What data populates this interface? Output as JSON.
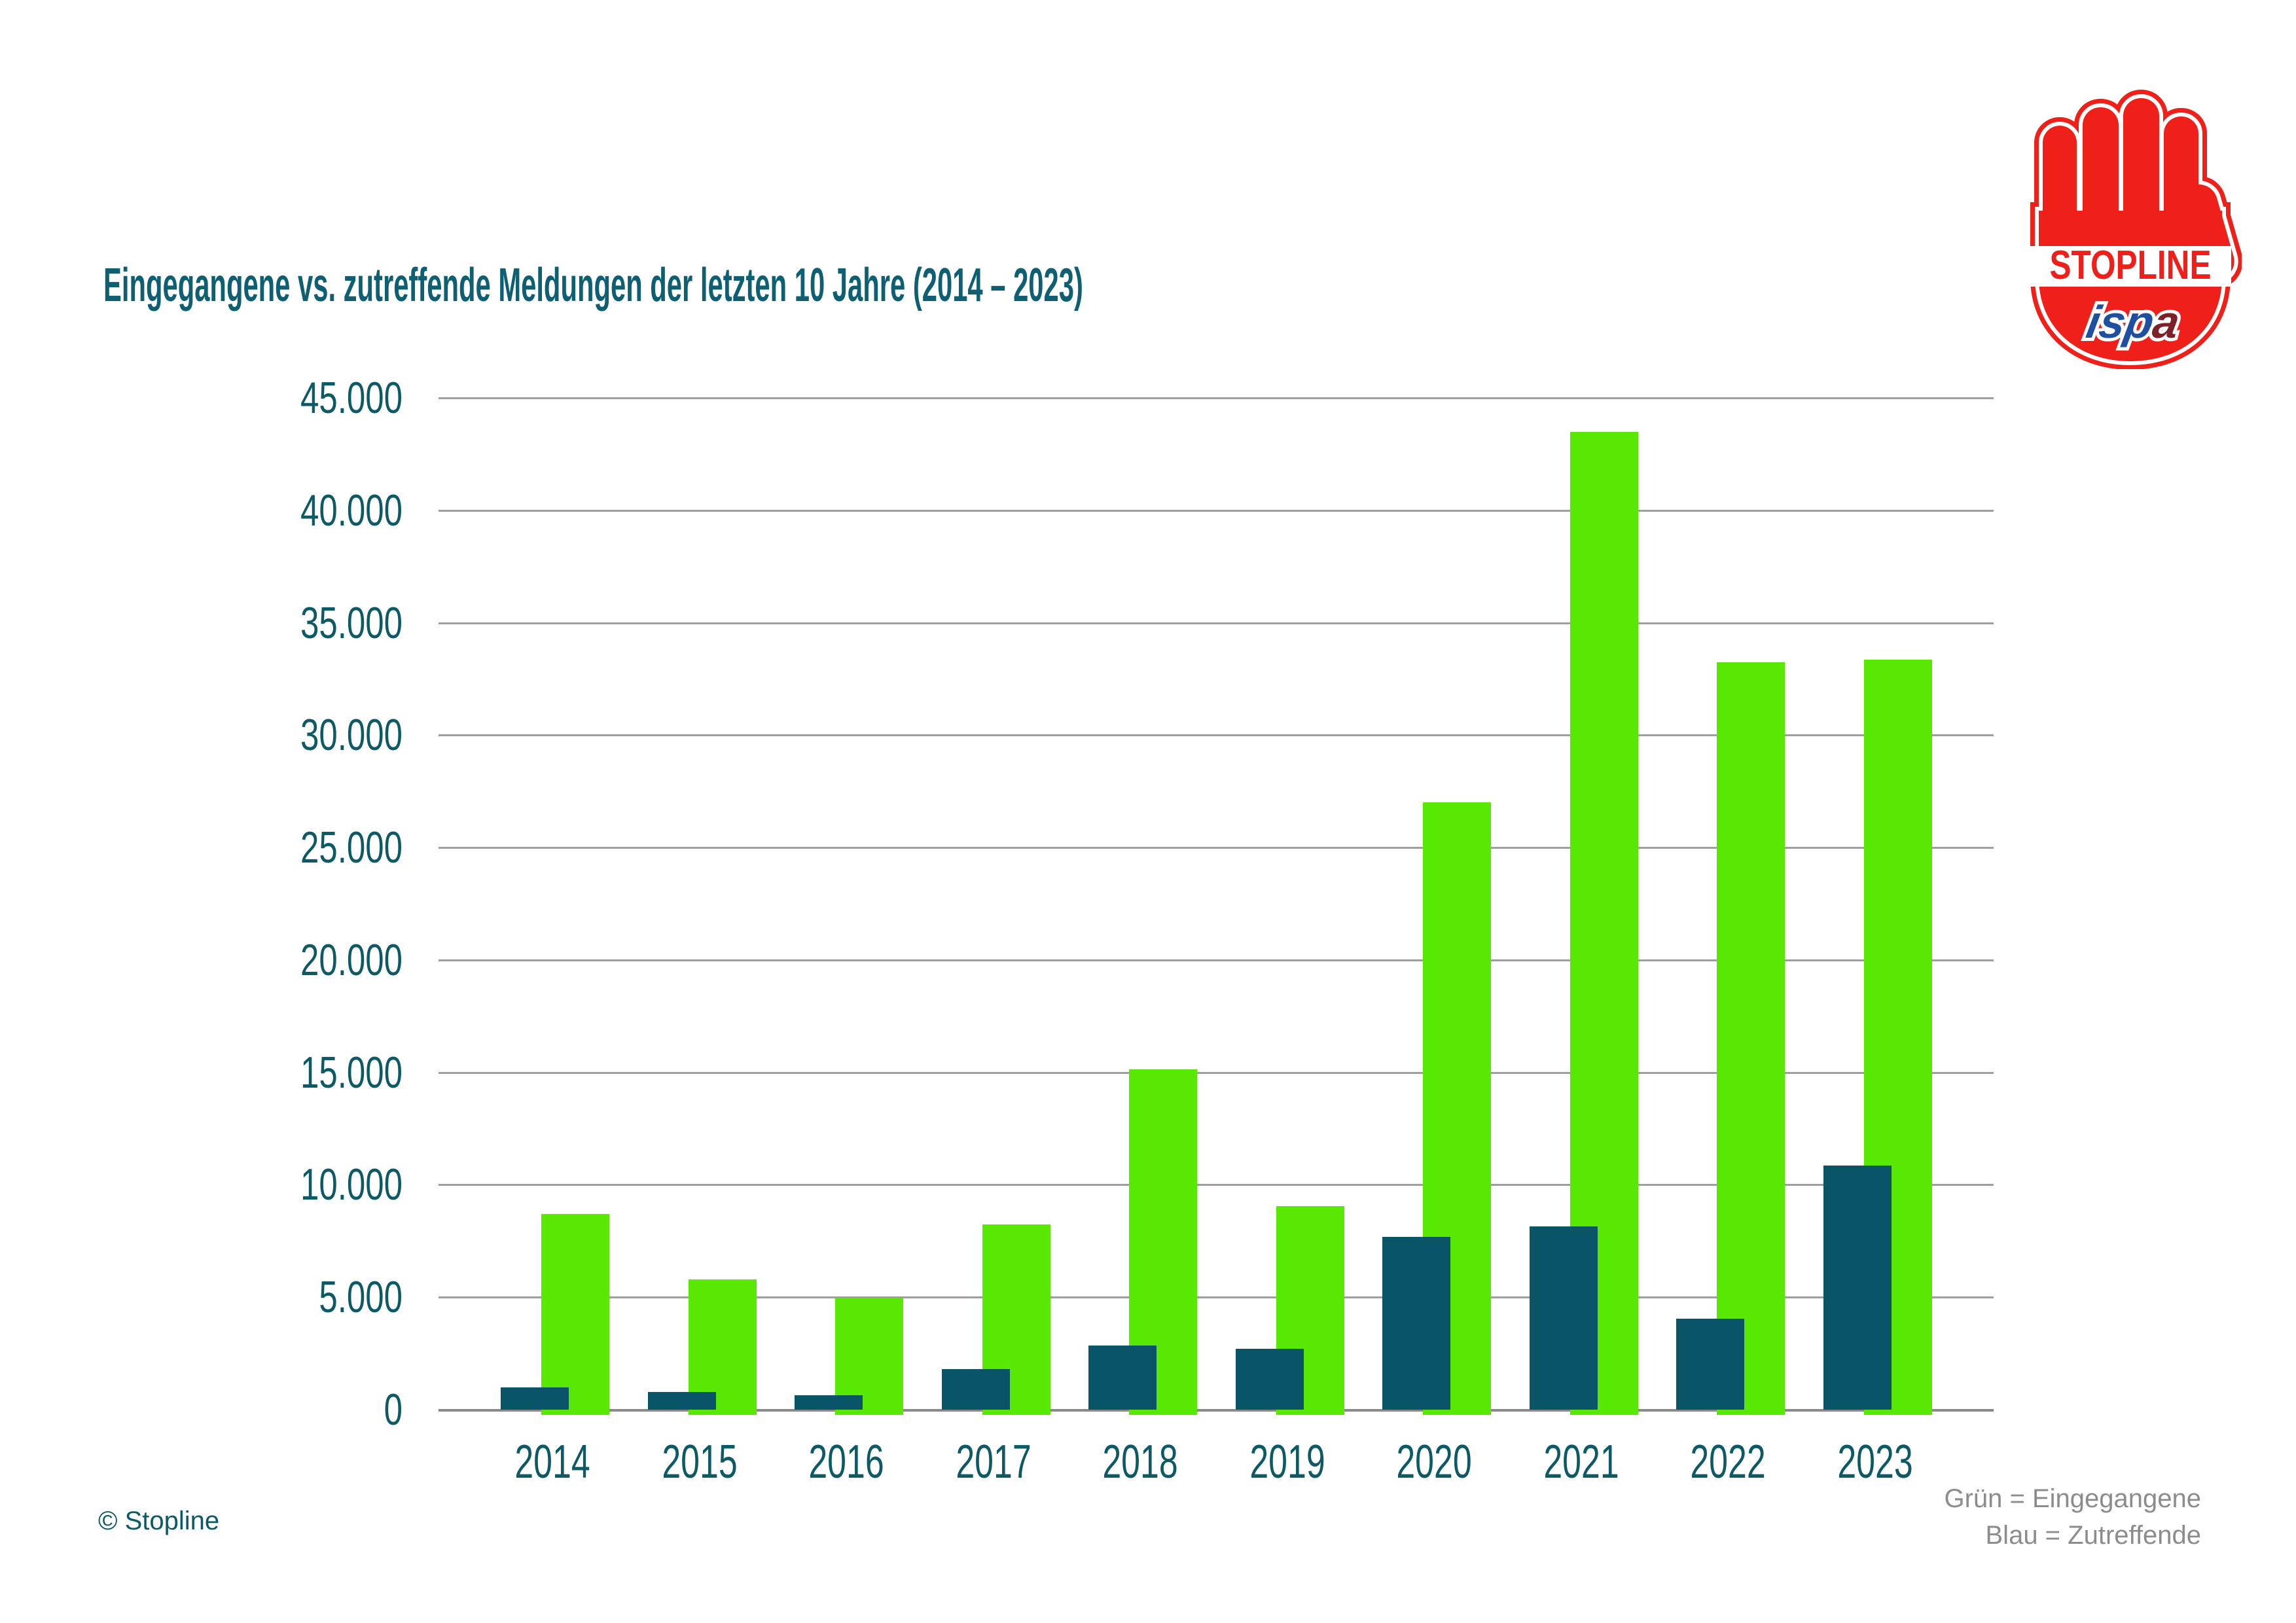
{
  "title": "Eingegangene vs. zutreffende Meldungen der letzten 10 Jahre (2014 – 2023)",
  "logo": {
    "stopline": "STOPLINE",
    "ispa_blue": "isp",
    "ispa_red": "a"
  },
  "footer": {
    "copyright": "© Stopline",
    "legend_line1": "Grün = Eingegangene",
    "legend_line2": "Blau = Zutreffende"
  },
  "colors": {
    "green": "#58E804",
    "blue": "#0A5468",
    "title_teal": "#0F5F73",
    "axis_teal": "#0D5A66",
    "gridline": "#9E9E9E",
    "baseline": "#8A8A8A",
    "legend_gray": "#8C8C8C",
    "logo_red": "#EE2019",
    "ispa_blue": "#1E4FA1",
    "ispa_maroon": "#7D2128"
  },
  "chart_data": {
    "type": "bar",
    "title": "Eingegangene vs. zutreffende Meldungen der letzten 10 Jahre (2014 – 2023)",
    "categories": [
      "2014",
      "2015",
      "2016",
      "2017",
      "2018",
      "2019",
      "2020",
      "2021",
      "2022",
      "2023"
    ],
    "series": [
      {
        "name": "Eingegangene",
        "color": "green",
        "values": [
          8700,
          5800,
          4950,
          8250,
          15150,
          9050,
          27000,
          43500,
          33250,
          33350
        ]
      },
      {
        "name": "Zutreffende",
        "color": "blue",
        "values": [
          1000,
          800,
          650,
          1800,
          2850,
          2700,
          7700,
          8150,
          4050,
          10850
        ]
      }
    ],
    "xlabel": "",
    "ylabel": "",
    "ylim": [
      0,
      45000
    ],
    "y_tick_step": 5000,
    "y_tick_labels": [
      "0",
      "5.000",
      "10.000",
      "15.000",
      "20.000",
      "25.000",
      "30.000",
      "35.000",
      "40.000",
      "45.000"
    ],
    "grid": "horizontal",
    "legend_position": "bottom-right"
  }
}
